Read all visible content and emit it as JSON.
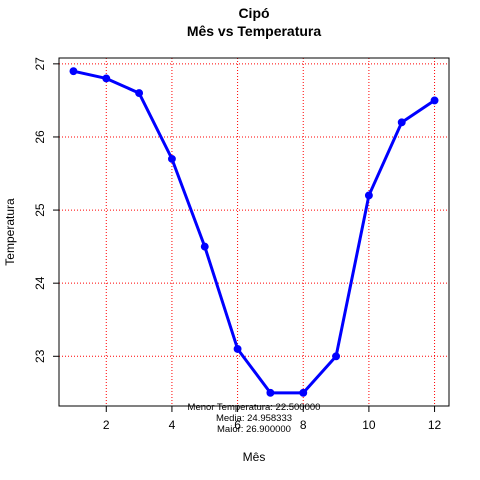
{
  "chart_data": {
    "type": "line",
    "title": "Cipó",
    "subtitle": "Mês vs Temperatura",
    "xlabel": "Mês",
    "ylabel": "Temperatura",
    "x": [
      1,
      2,
      3,
      4,
      5,
      6,
      7,
      8,
      9,
      10,
      11,
      12
    ],
    "series": [
      {
        "values": [
          26.9,
          26.8,
          26.6,
          25.7,
          24.5,
          23.1,
          22.5,
          22.5,
          23.0,
          25.2,
          26.2,
          26.5
        ]
      }
    ],
    "xlim": [
      0.56,
      12.44
    ],
    "ylim": [
      22.32,
      27.08
    ],
    "xticks": [
      2,
      4,
      6,
      8,
      10,
      12
    ],
    "yticks": [
      23,
      24,
      25,
      26,
      27
    ],
    "grid": true,
    "legend": "none",
    "annotations": [
      "Menor Temperatura: 22.500000",
      "Media: 24.958333",
      "Maior: 26.900000"
    ],
    "colors": {
      "line": "#0000ff",
      "grid": "#ff0000",
      "axis": "#000000"
    }
  }
}
